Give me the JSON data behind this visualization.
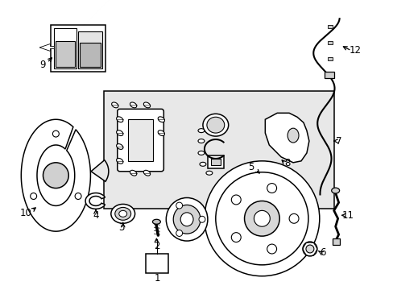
{
  "bg_color": "#ffffff",
  "line_color": "#000000",
  "label_color": "#000000",
  "figsize": [
    4.89,
    3.6
  ],
  "dpi": 100,
  "box_fill": "#e8e8e8"
}
